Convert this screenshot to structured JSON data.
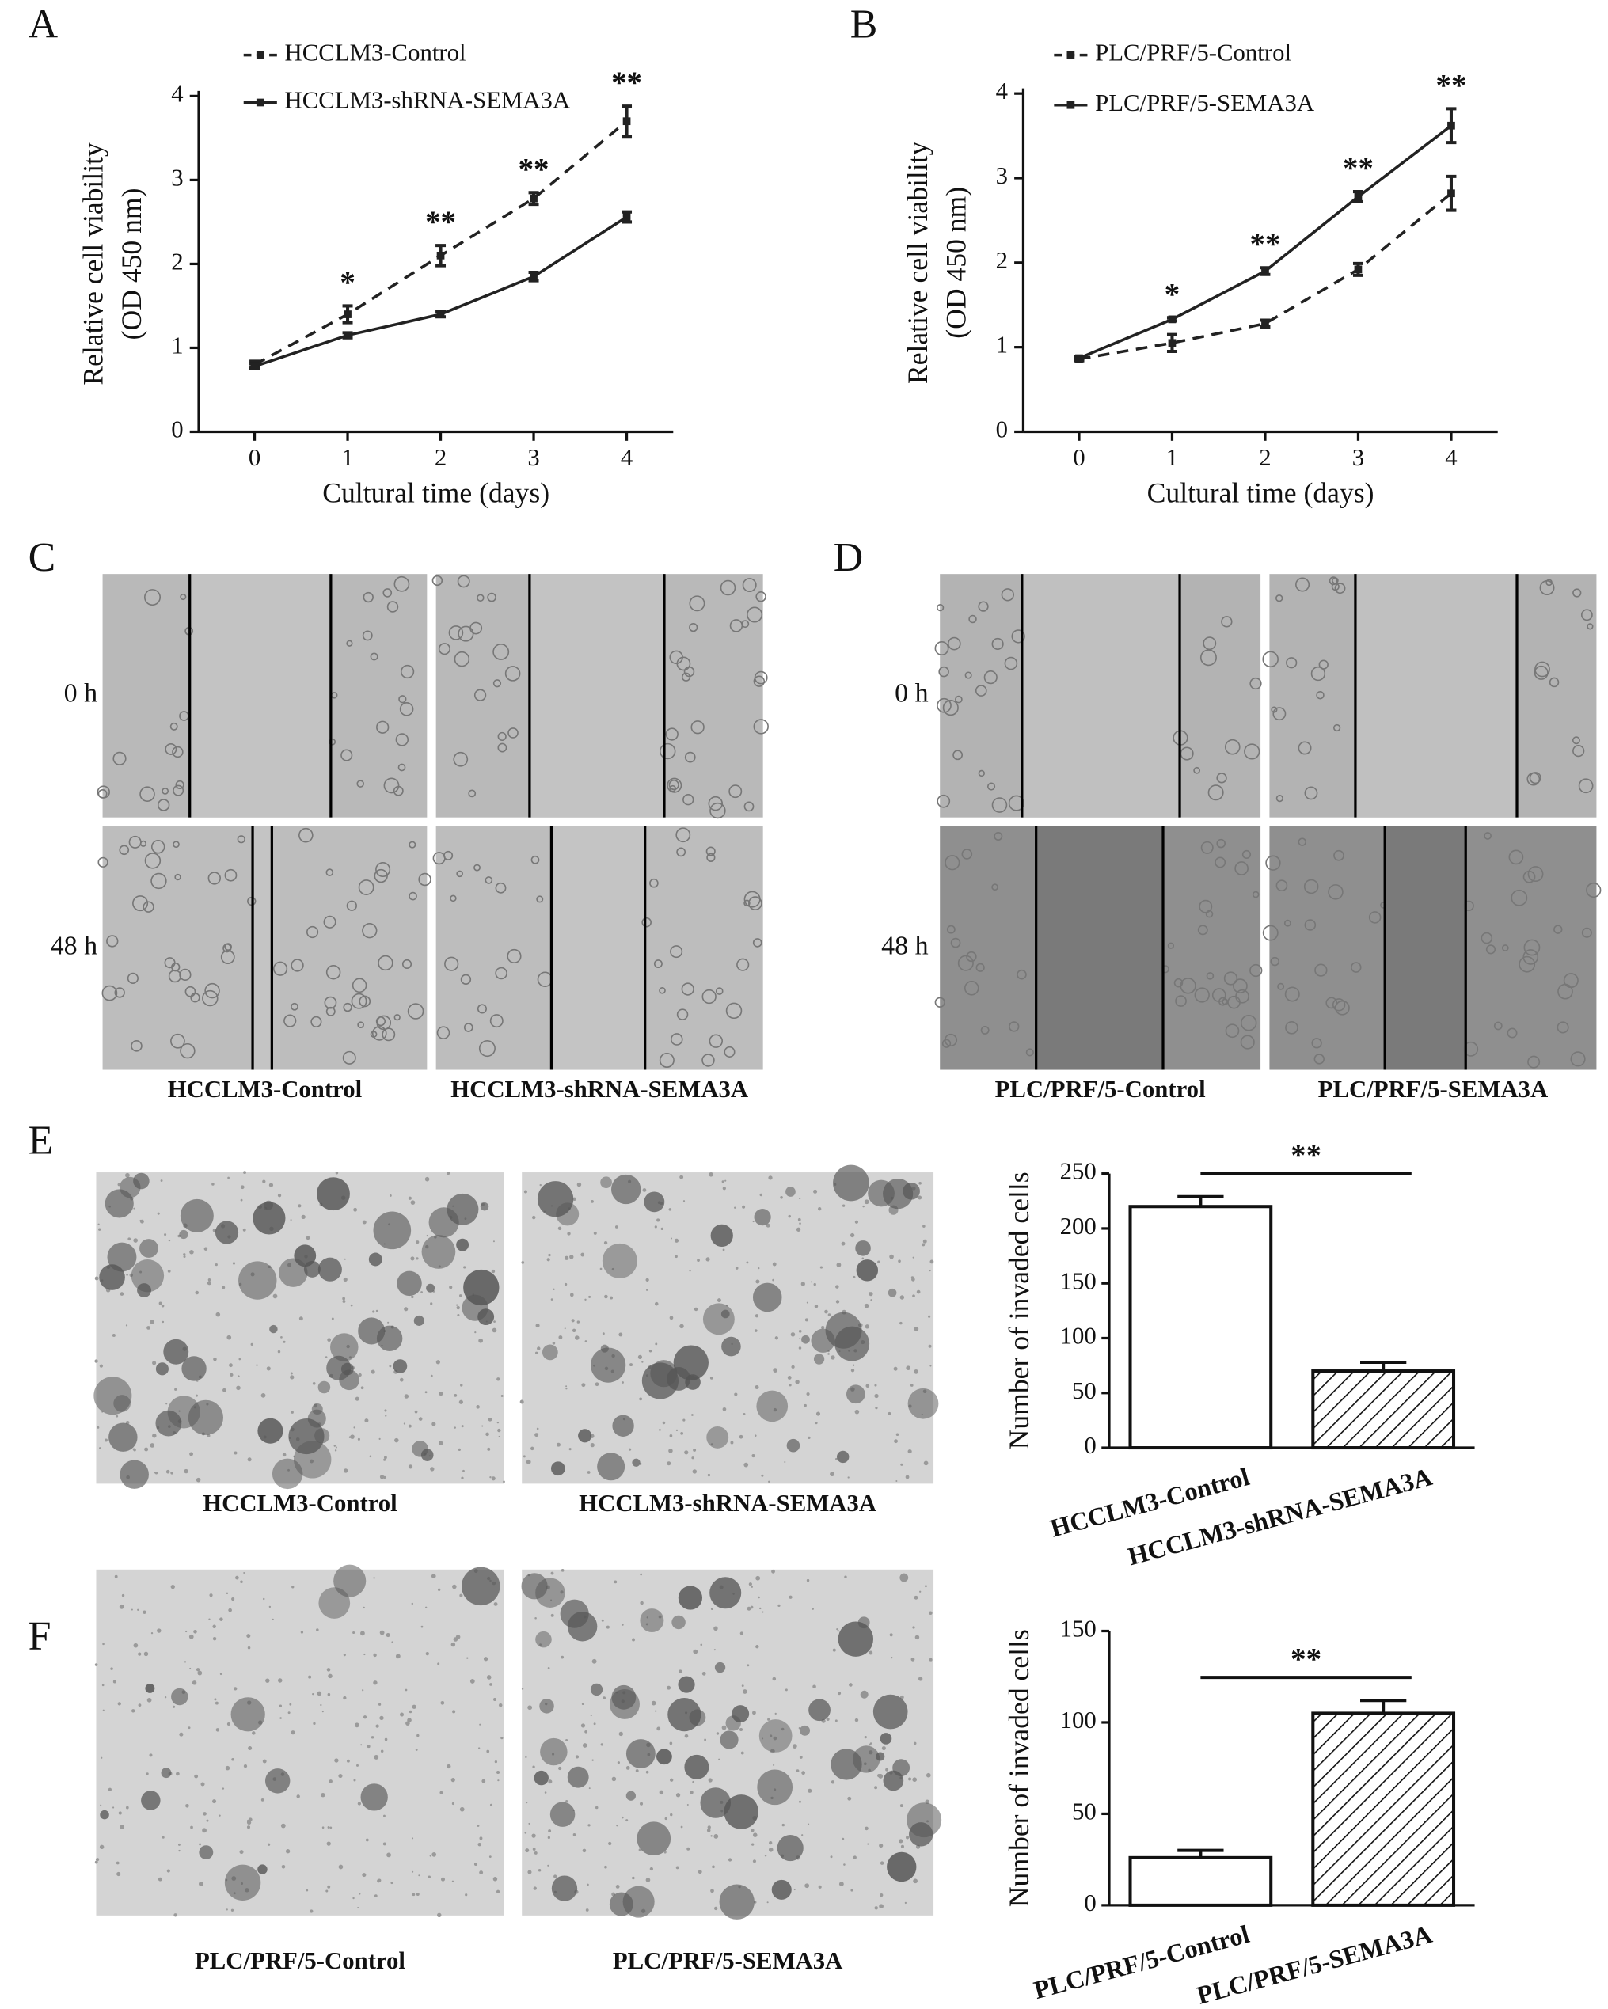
{
  "chart_data": [
    {
      "type": "line",
      "panel": "A",
      "xlabel": "Cultural time (days)",
      "ylabel": [
        "Relative cell viability",
        "(OD 450 nm)"
      ],
      "x": [
        0,
        1,
        2,
        3,
        4
      ],
      "xlim": [
        -0.6,
        4.5
      ],
      "xticks": [
        0,
        1,
        2,
        3,
        4
      ],
      "ylim": [
        0,
        4
      ],
      "yticks": [
        0,
        1,
        2,
        3,
        4
      ],
      "series": [
        {
          "name": "HCCLM3-Control",
          "color": "#222222",
          "dashed": true,
          "values": [
            0.8,
            1.4,
            2.1,
            2.78,
            3.7
          ],
          "errors": [
            0.04,
            0.1,
            0.12,
            0.07,
            0.18
          ]
        },
        {
          "name": "HCCLM3-shRNA-SEMA3A",
          "color": "#222222",
          "dashed": false,
          "values": [
            0.78,
            1.15,
            1.4,
            1.85,
            2.56
          ],
          "errors": [
            0.03,
            0.03,
            0.03,
            0.05,
            0.06
          ]
        }
      ],
      "annotations": [
        {
          "x": 1,
          "text": "*"
        },
        {
          "x": 2,
          "text": "**"
        },
        {
          "x": 3,
          "text": "**"
        },
        {
          "x": 4,
          "text": "**"
        }
      ]
    },
    {
      "type": "line",
      "panel": "B",
      "xlabel": "Cultural time (days)",
      "ylabel": [
        "Relative cell viability",
        "(OD 450 nm)"
      ],
      "x": [
        0,
        1,
        2,
        3,
        4
      ],
      "xlim": [
        -0.6,
        4.5
      ],
      "xticks": [
        0,
        1,
        2,
        3,
        4
      ],
      "ylim": [
        0,
        4
      ],
      "yticks": [
        0,
        1,
        2,
        3,
        4
      ],
      "series": [
        {
          "name": "PLC/PRF/5-Control",
          "color": "#222222",
          "dashed": true,
          "values": [
            0.86,
            1.05,
            1.28,
            1.92,
            2.82
          ],
          "errors": [
            0.02,
            0.1,
            0.04,
            0.07,
            0.2
          ]
        },
        {
          "name": "PLC/PRF/5-SEMA3A",
          "color": "#222222",
          "dashed": false,
          "values": [
            0.87,
            1.33,
            1.9,
            2.78,
            3.62
          ],
          "errors": [
            0.02,
            0.02,
            0.04,
            0.06,
            0.2
          ]
        }
      ],
      "annotations": [
        {
          "x": 1,
          "text": "*"
        },
        {
          "x": 2,
          "text": "**"
        },
        {
          "x": 3,
          "text": "**"
        },
        {
          "x": 4,
          "text": "**"
        }
      ]
    },
    {
      "type": "bar",
      "ylabel": "Number of invaded cells",
      "categories": [
        "HCCLM3-Control",
        "HCCLM3-shRNA-SEMA3A"
      ],
      "values": [
        220,
        70
      ],
      "errors": [
        9,
        8
      ],
      "hatch": [
        false,
        true
      ],
      "color": "#111111",
      "ylim": [
        0,
        250
      ],
      "yticks": [
        0,
        50,
        100,
        150,
        200,
        250
      ],
      "significance": "**"
    },
    {
      "type": "bar",
      "ylabel": "Number of invaded cells",
      "categories": [
        "PLC/PRF/5-Control",
        "PLC/PRF/5-SEMA3A"
      ],
      "values": [
        26,
        105
      ],
      "errors": [
        4,
        7
      ],
      "hatch": [
        false,
        true
      ],
      "color": "#111111",
      "ylim": [
        0,
        150
      ],
      "yticks": [
        0,
        50,
        100,
        150
      ],
      "significance": "**"
    }
  ],
  "wound_healing": [
    {
      "panel": "C",
      "rows": [
        "0 h",
        "48 h"
      ],
      "columns": [
        "HCCLM3-Control",
        "HCCLM3-shRNA-SEMA3A"
      ]
    },
    {
      "panel": "D",
      "rows": [
        "0 h",
        "48 h"
      ],
      "columns": [
        "PLC/PRF/5-Control",
        "PLC/PRF/5-SEMA3A"
      ]
    }
  ],
  "invasion_images": [
    {
      "panel": "E",
      "columns": [
        "HCCLM3-Control",
        "HCCLM3-shRNA-SEMA3A"
      ]
    },
    {
      "panel": "F",
      "columns": [
        "PLC/PRF/5-Control",
        "PLC/PRF/5-SEMA3A"
      ]
    }
  ]
}
